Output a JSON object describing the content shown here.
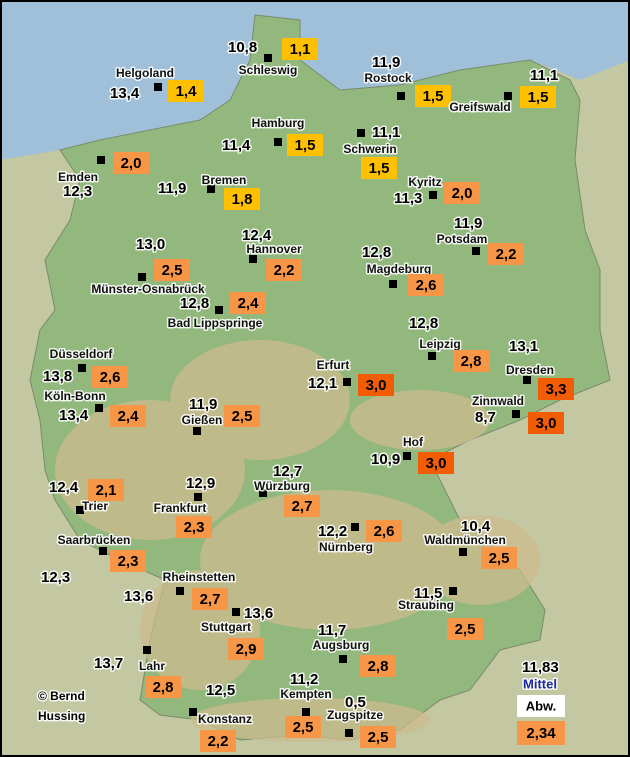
{
  "stations": [
    {
      "name": "Schleswig",
      "mean": "10,8",
      "deviation": "1,1",
      "color": "#ffc000"
    },
    {
      "name": "Helgoland",
      "mean": "13,4",
      "deviation": "1,4",
      "color": "#ffc000"
    },
    {
      "name": "Rostock",
      "mean": "11,9",
      "deviation": "1,5",
      "color": "#ffc000"
    },
    {
      "name": "Greifswald",
      "mean": "11,1",
      "deviation": "1,5",
      "color": "#ffc000"
    },
    {
      "name": "Hamburg",
      "mean": "11,4",
      "deviation": "1,5",
      "color": "#ffc000"
    },
    {
      "name": "Schwerin",
      "mean": "11,1",
      "deviation": "1,5",
      "color": "#ffc000"
    },
    {
      "name": "Emden",
      "mean": "12,3",
      "deviation": "2,0",
      "color": "#f79646"
    },
    {
      "name": "Bremen",
      "mean": "11,9",
      "deviation": "1,8",
      "color": "#ffc000"
    },
    {
      "name": "Kyritz",
      "mean": "11,3",
      "deviation": "2,0",
      "color": "#f79646"
    },
    {
      "name": "Potsdam",
      "mean": "11,9",
      "deviation": "2,2",
      "color": "#f79646"
    },
    {
      "name": "Hannover",
      "mean": "12,4",
      "deviation": "2,2",
      "color": "#f79646"
    },
    {
      "name": "Münster-Osnabrück",
      "mean": "13,0",
      "deviation": "2,5",
      "color": "#f79646"
    },
    {
      "name": "Magdeburg",
      "mean": "12,8",
      "deviation": "2,6",
      "color": "#f79646"
    },
    {
      "name": "Bad Lippspringe",
      "mean": "12,8",
      "deviation": "2,4",
      "color": "#f79646"
    },
    {
      "name": "Leipzig",
      "mean": "12,8",
      "deviation": "2,8",
      "color": "#f79646"
    },
    {
      "name": "Dresden",
      "mean": "13,1",
      "deviation": "3,3",
      "color": "#f25c05"
    },
    {
      "name": "Düsseldorf",
      "mean": "13,8",
      "deviation": "2,6",
      "color": "#f79646"
    },
    {
      "name": "Erfurt",
      "mean": "12,1",
      "deviation": "3,0",
      "color": "#f25c05"
    },
    {
      "name": "Köln-Bonn",
      "mean": "13,4",
      "deviation": "2,4",
      "color": "#f79646"
    },
    {
      "name": "Gießen",
      "mean": "11,9",
      "deviation": "2,5",
      "color": "#f79646"
    },
    {
      "name": "Zinnwald",
      "mean": "8,7",
      "deviation": "3,0",
      "color": "#f25c05"
    },
    {
      "name": "Hof",
      "mean": "10,9",
      "deviation": "3,0",
      "color": "#f25c05"
    },
    {
      "name": "Würzburg",
      "mean": "12,7",
      "deviation": "2,7",
      "color": "#f79646"
    },
    {
      "name": "Trier",
      "mean": "12,4",
      "deviation": "2,1",
      "color": "#f79646"
    },
    {
      "name": "Frankfurt",
      "mean": "12,9",
      "deviation": "2,3",
      "color": "#f79646"
    },
    {
      "name": "Nürnberg",
      "mean": "12,2",
      "deviation": "2,6",
      "color": "#f79646"
    },
    {
      "name": "Waldmünchen",
      "mean": "10,4",
      "deviation": "2,5",
      "color": "#f79646"
    },
    {
      "name": "Saarbrücken",
      "mean": "12,3",
      "deviation": "2,3",
      "color": "#f79646"
    },
    {
      "name": "Rheinstetten",
      "mean": "13,6",
      "deviation": "2,7",
      "color": "#f79646"
    },
    {
      "name": "Straubing",
      "mean": "11,5",
      "deviation": "2,5",
      "color": "#f79646"
    },
    {
      "name": "Stuttgart",
      "mean": "13,6",
      "deviation": "2,9",
      "color": "#f79646"
    },
    {
      "name": "Augsburg",
      "mean": "11,7",
      "deviation": "2,8",
      "color": "#f79646"
    },
    {
      "name": "Lahr",
      "mean": "13,7",
      "deviation": "2,8",
      "color": "#f79646"
    },
    {
      "name": "Kempten",
      "mean": "11,2",
      "deviation": "2,5",
      "color": "#f79646"
    },
    {
      "name": "Zugspitze",
      "mean": "0,5",
      "deviation": "2,5",
      "color": "#f79646"
    },
    {
      "name": "Konstanz",
      "mean": "12,5",
      "deviation": "2,2",
      "color": "#f79646"
    }
  ],
  "legend": {
    "mean_value": "11,83",
    "mean_label": "Mittel",
    "deviation_label": "Abw.",
    "deviation_value": "2,34",
    "deviation_color": "#f79646"
  },
  "credit": [
    "© Bernd",
    "Hussing"
  ]
}
